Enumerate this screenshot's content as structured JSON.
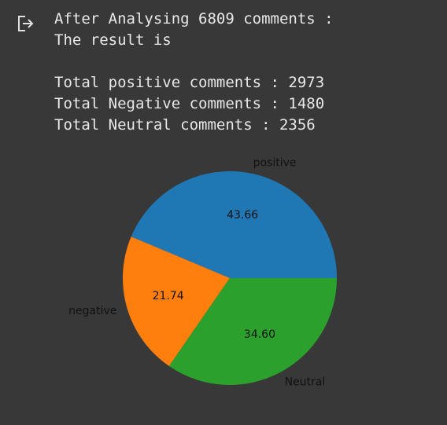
{
  "output": {
    "icon": "output-redirect-icon",
    "lines": [
      "After Analysing 6809 comments :",
      "The result is",
      "",
      "Total positive comments : 2973",
      "Total Negative comments : 1480",
      "Total Neutral comments : 2356"
    ]
  },
  "colors": {
    "background": "#383838",
    "text": "#e8e8e8",
    "positive": "#1f77b4",
    "negative": "#ff7f0e",
    "neutral": "#2ca02c"
  },
  "chart_data": {
    "type": "pie",
    "categories": [
      "positive",
      "negative",
      "Neutral"
    ],
    "values": [
      2973,
      1480,
      2356
    ],
    "percent_labels": [
      "43.66",
      "21.74",
      "34.60"
    ],
    "colors": [
      "#1f77b4",
      "#ff7f0e",
      "#2ca02c"
    ],
    "start_angle_deg": 0,
    "direction": "counterclockwise"
  }
}
